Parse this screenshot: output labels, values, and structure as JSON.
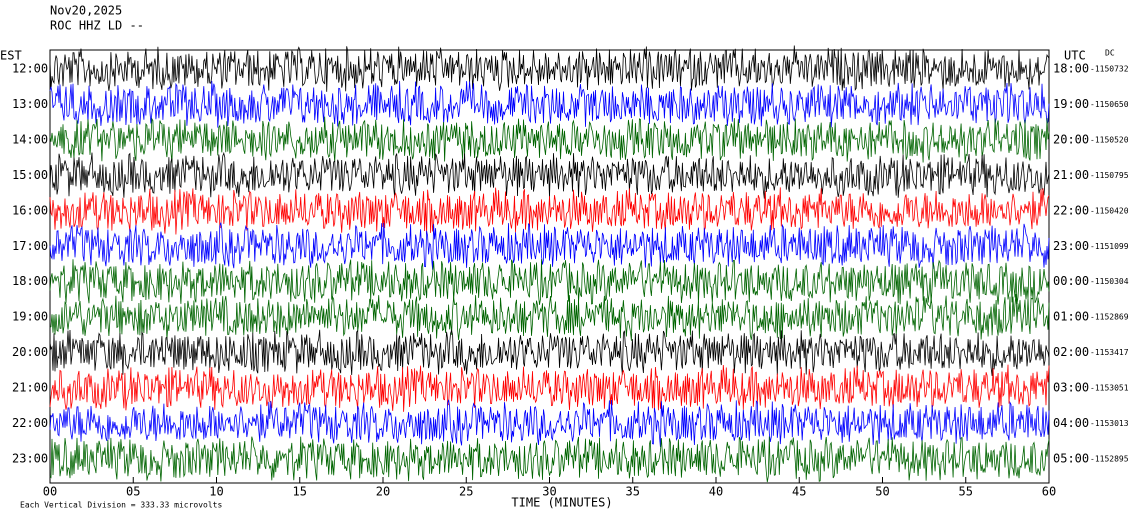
{
  "chart_data": {
    "type": "seismogram",
    "title": "Nov20,2025",
    "subtitle": "ROC HHZ LD --",
    "left_axis_label": "EST",
    "right_axis_label": "UTC",
    "right_corner_label": "DC",
    "xlabel": "TIME (MINUTES)",
    "scale_note": "Each Vertical Division = 333.33 microvolts",
    "xlim": [
      0,
      60
    ],
    "xticks": [
      {
        "value": 0,
        "label": "00"
      },
      {
        "value": 5,
        "label": "05"
      },
      10,
      15,
      20,
      25,
      30,
      35,
      40,
      45,
      50,
      55,
      60
    ],
    "rows": [
      {
        "local": "12:00",
        "utc": "18:00",
        "offset": "-1150732",
        "color": "#000000"
      },
      {
        "local": "13:00",
        "utc": "19:00",
        "offset": "-1150650",
        "color": "#0000ff"
      },
      {
        "local": "14:00",
        "utc": "20:00",
        "offset": "-1150520",
        "color": "#006400"
      },
      {
        "local": "15:00",
        "utc": "21:00",
        "offset": "-1150795",
        "color": "#000000"
      },
      {
        "local": "16:00",
        "utc": "22:00",
        "offset": "-1150420",
        "color": "#ff0000"
      },
      {
        "local": "17:00",
        "utc": "23:00",
        "offset": "-1151099",
        "color": "#0000ff"
      },
      {
        "local": "18:00",
        "utc": "00:00",
        "offset": "-1150304",
        "color": "#006400"
      },
      {
        "local": "19:00",
        "utc": "01:00",
        "offset": "-1152869",
        "color": "#006400"
      },
      {
        "local": "20:00",
        "utc": "02:00",
        "offset": "-1153417",
        "color": "#000000"
      },
      {
        "local": "21:00",
        "utc": "03:00",
        "offset": "-1153051",
        "color": "#ff0000"
      },
      {
        "local": "22:00",
        "utc": "04:00",
        "offset": "-1153013",
        "color": "#0000ff"
      },
      {
        "local": "23:00",
        "utc": "05:00",
        "offset": "-1152895",
        "color": "#006400"
      }
    ]
  }
}
